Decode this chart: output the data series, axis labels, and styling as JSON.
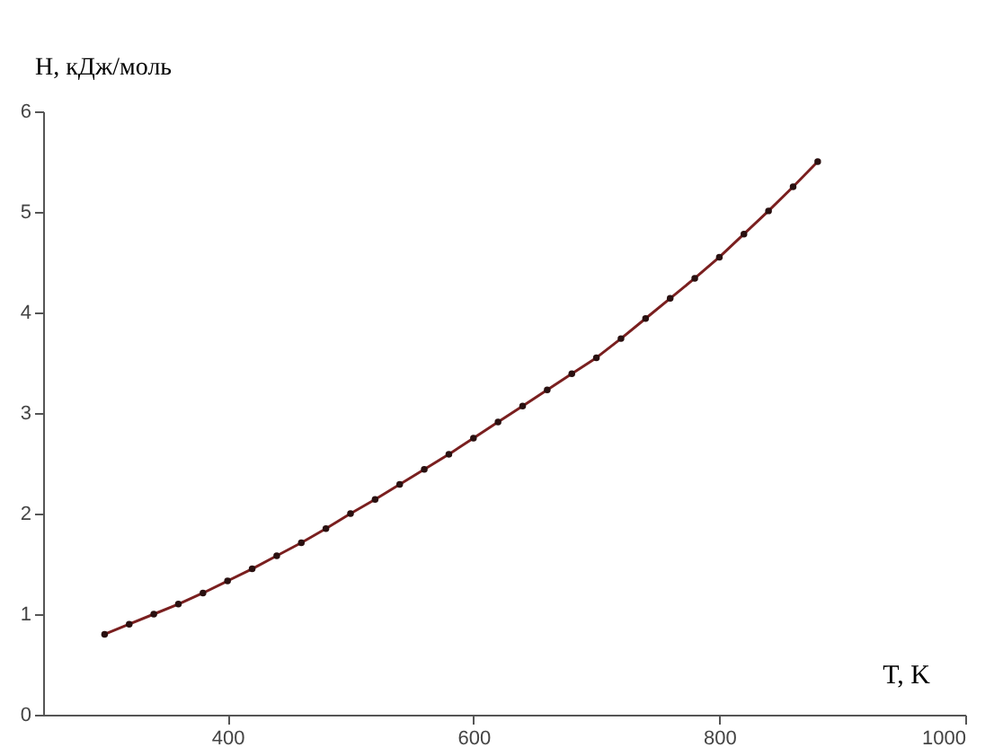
{
  "chart_data": {
    "type": "line",
    "xlabel": "T, K",
    "ylabel": "H, кДж/моль",
    "x": [
      300,
      320,
      340,
      360,
      380,
      400,
      420,
      440,
      460,
      480,
      500,
      520,
      540,
      560,
      580,
      600,
      620,
      640,
      660,
      680,
      700,
      720,
      740,
      760,
      780,
      800,
      820,
      840,
      860,
      880
    ],
    "series": [
      {
        "color": "#7a1f1f",
        "values": [
          0.8,
          0.9,
          1.0,
          1.1,
          1.21,
          1.33,
          1.45,
          1.58,
          1.71,
          1.85,
          2.0,
          2.14,
          2.29,
          2.44,
          2.59,
          2.75,
          2.91,
          3.07,
          3.23,
          3.39,
          3.55,
          3.74,
          3.94,
          4.14,
          4.34,
          4.55,
          4.78,
          5.01,
          5.25,
          5.5
        ]
      }
    ],
    "xlim": [
      250,
      1000
    ],
    "xticks": [
      400,
      600,
      800,
      1000
    ],
    "ylim": [
      0,
      6
    ],
    "yticks": [
      0,
      1,
      2,
      3,
      4,
      5,
      6
    ],
    "grid": false,
    "marker": "circle",
    "line_style": "solid"
  }
}
